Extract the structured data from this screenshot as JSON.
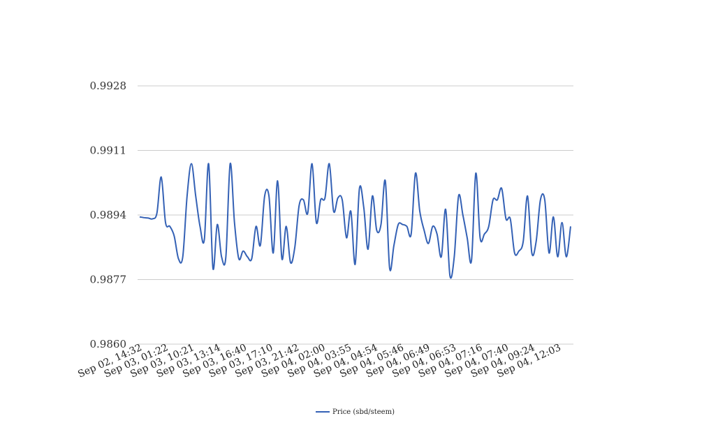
{
  "chart_data": {
    "type": "line",
    "title": "",
    "xlabel": "",
    "ylabel": "",
    "ylim": [
      0.986,
      0.9928
    ],
    "y_ticks": [
      "0.9860",
      "0.9877",
      "0.9894",
      "0.9911",
      "0.9928"
    ],
    "x_tick_labels": [
      "Sep 02, 14:32",
      "Sep 03, 01:22",
      "Sep 03, 10:21",
      "Sep 03, 13:14",
      "Sep 03, 16:40",
      "Sep 03, 17:10",
      "Sep 03, 21:42",
      "Sep 04, 02:00",
      "Sep 04, 03:55",
      "Sep 04, 04:54",
      "Sep 04, 05:46",
      "Sep 04, 06:49",
      "Sep 04, 06:53",
      "Sep 04, 07:16",
      "Sep 04, 07:40",
      "Sep 04, 09:24",
      "Sep 04, 12:03"
    ],
    "grid": true,
    "legend_position": "bottom",
    "series": [
      {
        "name": "Price (sbd/steem)",
        "color": "#3461b5",
        "values": [
          0.98935,
          0.98933,
          0.98932,
          0.9893,
          0.98945,
          0.9904,
          0.9892,
          0.9891,
          0.98885,
          0.98825,
          0.9883,
          0.9899,
          0.99075,
          0.9899,
          0.9891,
          0.98875,
          0.99075,
          0.988,
          0.98915,
          0.9883,
          0.9883,
          0.99075,
          0.9892,
          0.98825,
          0.98845,
          0.9883,
          0.98825,
          0.9891,
          0.9886,
          0.9899,
          0.9899,
          0.9884,
          0.9903,
          0.98825,
          0.9891,
          0.98815,
          0.98855,
          0.98965,
          0.9898,
          0.98945,
          0.99075,
          0.9892,
          0.9898,
          0.98985,
          0.99075,
          0.9895,
          0.98985,
          0.9898,
          0.9888,
          0.9895,
          0.9881,
          0.9901,
          0.9896,
          0.9885,
          0.9899,
          0.989,
          0.98915,
          0.9903,
          0.988,
          0.9886,
          0.98915,
          0.98915,
          0.9891,
          0.9889,
          0.9905,
          0.9895,
          0.989,
          0.98865,
          0.9891,
          0.9889,
          0.9883,
          0.98955,
          0.9878,
          0.9883,
          0.9899,
          0.9894,
          0.9888,
          0.9882,
          0.9905,
          0.9888,
          0.9889,
          0.9891,
          0.9898,
          0.9898,
          0.9901,
          0.9893,
          0.9893,
          0.9884,
          0.98845,
          0.9887,
          0.9899,
          0.9884,
          0.9887,
          0.9898,
          0.9898,
          0.9884,
          0.98935,
          0.9883,
          0.9892,
          0.9883,
          0.9891
        ]
      }
    ]
  }
}
